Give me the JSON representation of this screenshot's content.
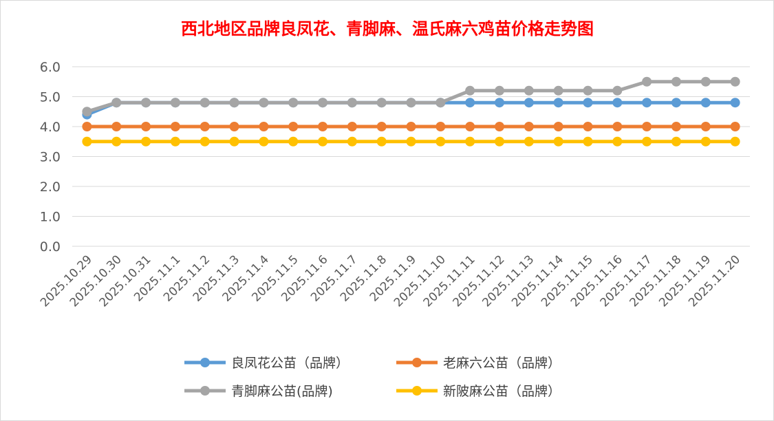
{
  "chart_data": {
    "type": "line",
    "title": "西北地区品牌良凤花、青脚麻、温氏麻六鸡苗价格走势图",
    "title_color": "#ff0000",
    "xlabel": "",
    "ylabel": "",
    "ylim": [
      0,
      6
    ],
    "yticks": [
      "0.0",
      "1.0",
      "2.0",
      "3.0",
      "4.0",
      "5.0",
      "6.0"
    ],
    "grid": true,
    "legend_position": "bottom",
    "categories": [
      "2025.10.29",
      "2025.10.30",
      "2025.10.31",
      "2025.11.1",
      "2025.11.2",
      "2025.11.3",
      "2025.11.4",
      "2025.11.5",
      "2025.11.6",
      "2025.11.7",
      "2025.11.8",
      "2025.11.9",
      "2025.11.10",
      "2025.11.11",
      "2025.11.12",
      "2025.11.13",
      "2025.11.14",
      "2025.11.15",
      "2025.11.16",
      "2025.11.17",
      "2025.11.18",
      "2025.11.19",
      "2025.11.20"
    ],
    "series": [
      {
        "name": "良凤花公苗（品牌）",
        "color": "#5b9bd5",
        "values": [
          4.4,
          4.8,
          4.8,
          4.8,
          4.8,
          4.8,
          4.8,
          4.8,
          4.8,
          4.8,
          4.8,
          4.8,
          4.8,
          4.8,
          4.8,
          4.8,
          4.8,
          4.8,
          4.8,
          4.8,
          4.8,
          4.8,
          4.8
        ]
      },
      {
        "name": "老麻六公苗（品牌）",
        "color": "#ed7d31",
        "values": [
          4.0,
          4.0,
          4.0,
          4.0,
          4.0,
          4.0,
          4.0,
          4.0,
          4.0,
          4.0,
          4.0,
          4.0,
          4.0,
          4.0,
          4.0,
          4.0,
          4.0,
          4.0,
          4.0,
          4.0,
          4.0,
          4.0,
          4.0
        ]
      },
      {
        "name": "青脚麻公苗(品牌)",
        "color": "#a5a5a5",
        "values": [
          4.5,
          4.8,
          4.8,
          4.8,
          4.8,
          4.8,
          4.8,
          4.8,
          4.8,
          4.8,
          4.8,
          4.8,
          4.8,
          5.2,
          5.2,
          5.2,
          5.2,
          5.2,
          5.2,
          5.5,
          5.5,
          5.5,
          5.5
        ]
      },
      {
        "name": "新陂麻公苗（品牌）",
        "color": "#ffc000",
        "values": [
          3.5,
          3.5,
          3.5,
          3.5,
          3.5,
          3.5,
          3.5,
          3.5,
          3.5,
          3.5,
          3.5,
          3.5,
          3.5,
          3.5,
          3.5,
          3.5,
          3.5,
          3.5,
          3.5,
          3.5,
          3.5,
          3.5,
          3.5
        ]
      }
    ],
    "draw_order": [
      0,
      1,
      3,
      2
    ]
  }
}
